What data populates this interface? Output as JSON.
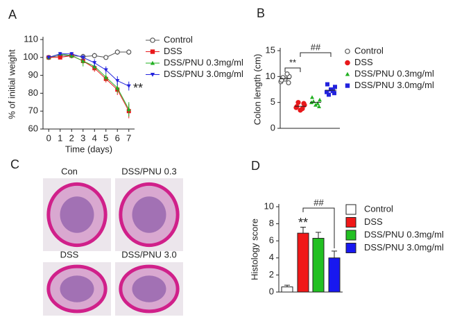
{
  "chart_data": [
    {
      "type": "line",
      "panel": "A",
      "y_label": "% of initial weight",
      "x_label": "Time (days)",
      "x": [
        0,
        1,
        2,
        3,
        4,
        5,
        6,
        7
      ],
      "xlim": [
        -0.5,
        7.5
      ],
      "xticks": [
        0,
        1,
        2,
        3,
        4,
        5,
        6,
        7
      ],
      "ylim": [
        60,
        110
      ],
      "yticks": [
        60,
        70,
        80,
        90,
        100,
        110
      ],
      "series": [
        {
          "name": "Control",
          "color": "#555555",
          "marker": "open-circle",
          "values": [
            100,
            101,
            101,
            100.5,
            101,
            100,
            103,
            103
          ],
          "errors": [
            0.5,
            1,
            1,
            1.5,
            1.5,
            1,
            1.5,
            1.5
          ]
        },
        {
          "name": "DSS",
          "color": "#e8181b",
          "marker": "square",
          "values": [
            100,
            100,
            101,
            98,
            94,
            88,
            82,
            70
          ],
          "errors": [
            0.5,
            1,
            1,
            1.5,
            2,
            2,
            3,
            4
          ]
        },
        {
          "name": "DSS/PNU 0.3mg/ml",
          "color": "#22b022",
          "marker": "triangle",
          "values": [
            100,
            102,
            101,
            98,
            95,
            89,
            83,
            71
          ],
          "errors": [
            0.5,
            1,
            1.5,
            3,
            2,
            2,
            3,
            4
          ]
        },
        {
          "name": "DSS/PNU 3.0mg/ml",
          "color": "#2222dd",
          "marker": "triangle-down",
          "values": [
            100,
            102,
            102,
            100,
            97,
            93,
            87,
            84
          ],
          "errors": [
            0.5,
            1,
            1,
            1.5,
            2,
            2,
            2.5,
            2.5
          ]
        }
      ],
      "annotations": [
        "**"
      ]
    },
    {
      "type": "dot",
      "panel": "B",
      "y_label": "Colon length (cm)",
      "ylim": [
        0,
        15
      ],
      "yticks": [
        0,
        5,
        10,
        15
      ],
      "series": [
        {
          "name": "Control",
          "color": "#555555",
          "marker": "open-circle",
          "values": [
            9,
            9.5,
            10,
            9.8,
            10.5,
            9.3,
            8.8
          ]
        },
        {
          "name": "DSS",
          "color": "#e8181b",
          "marker": "circle",
          "values": [
            4,
            3.5,
            4.5,
            5,
            3.8,
            4.2,
            4.8
          ]
        },
        {
          "name": "DSS/PNU 0.3mg/ml",
          "color": "#22b022",
          "marker": "triangle",
          "values": [
            5,
            4.5,
            5.5,
            5.2,
            4.8,
            6,
            4.2
          ]
        },
        {
          "name": "DSS/PNU 3.0mg/ml",
          "color": "#2222dd",
          "marker": "square",
          "values": [
            7,
            7.5,
            8,
            6.5,
            7.2,
            8.5,
            6.8
          ]
        }
      ],
      "annotations": [
        "**",
        "##"
      ]
    },
    {
      "type": "image-grid",
      "panel": "C",
      "labels": [
        "Con",
        "DSS/PNU 0.3",
        "DSS",
        "DSS/PNU 3.0"
      ]
    },
    {
      "type": "bar",
      "panel": "D",
      "y_label": "Histology score",
      "ylim": [
        0,
        10
      ],
      "yticks": [
        0,
        2,
        4,
        6,
        8,
        10
      ],
      "series": [
        {
          "name": "Control",
          "color": "#ffffff",
          "values": [
            0.6
          ],
          "errors": [
            0.2
          ]
        },
        {
          "name": "DSS",
          "color": "#f01818",
          "values": [
            6.9
          ],
          "errors": [
            0.7
          ]
        },
        {
          "name": "DSS/PNU 0.3mg/ml",
          "color": "#22c022",
          "values": [
            6.3
          ],
          "errors": [
            0.7
          ]
        },
        {
          "name": "DSS/PNU 3.0mg/ml",
          "color": "#1818f0",
          "values": [
            4.0
          ],
          "errors": [
            0.8
          ]
        }
      ],
      "annotations": [
        "**",
        "##"
      ]
    }
  ]
}
